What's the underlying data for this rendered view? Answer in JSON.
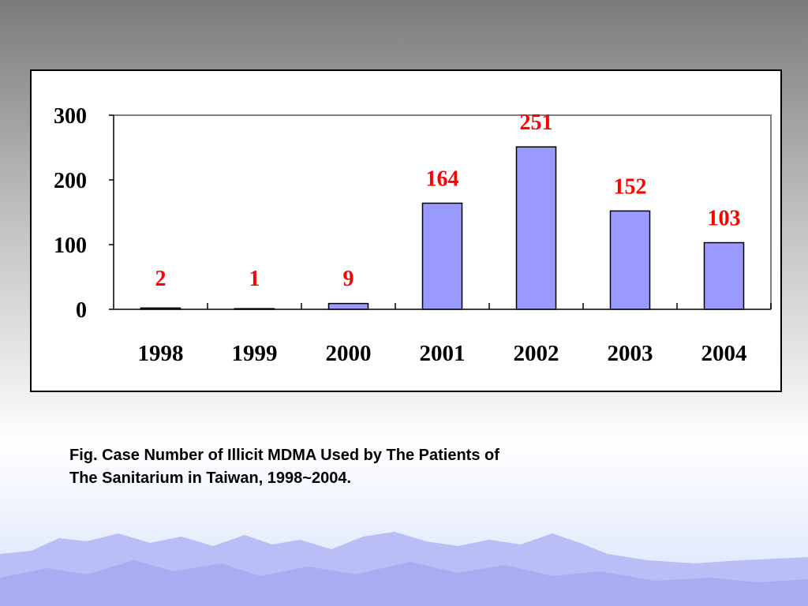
{
  "caption": {
    "line1": "Fig.  Case Number of Illicit MDMA Used by The Patients of",
    "line2": "The Sanitarium in Taiwan, 1998~2004."
  },
  "colors": {
    "bar_fill": "#9999ff",
    "bar_stroke": "#000000",
    "data_label": "#ff0000",
    "frame": "#808080",
    "mountain_light": "#b9bef7",
    "mountain_dark": "#9a9ff0"
  },
  "chart_data": {
    "type": "bar",
    "categories": [
      "1998",
      "1999",
      "2000",
      "2001",
      "2002",
      "2003",
      "2004"
    ],
    "values": [
      2,
      1,
      9,
      164,
      251,
      152,
      103
    ],
    "data_labels": [
      "2",
      "1",
      "9",
      "164",
      "251",
      "152",
      "103"
    ],
    "yticks": [
      "0",
      "100",
      "200",
      "300"
    ],
    "ylim": [
      0,
      300
    ],
    "title": "",
    "xlabel": "",
    "ylabel": "",
    "grid": false,
    "legend": "none"
  }
}
